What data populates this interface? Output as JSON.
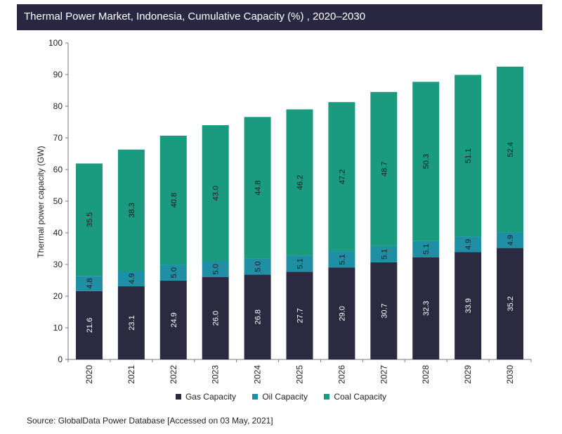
{
  "title": "Thermal Power Market, Indonesia, Cumulative Capacity (%) , 2020–2030",
  "source": "Source: GlobalData Power Database [Accessed on 03 May, 2021]",
  "colors": {
    "title_bg": "#2a2742",
    "gas": "#2c2a40",
    "oil": "#1f8fa6",
    "coal": "#1a9a7f"
  },
  "chart_data": {
    "type": "bar",
    "stacked": true,
    "categories": [
      "2020",
      "2021",
      "2022",
      "2023",
      "2024",
      "2025",
      "2026",
      "2027",
      "2028",
      "2029",
      "2030"
    ],
    "series": [
      {
        "name": "Gas Capacity",
        "values": [
          21.6,
          23.1,
          24.9,
          26.0,
          26.8,
          27.7,
          29.0,
          30.7,
          32.3,
          33.9,
          35.2
        ],
        "labels": [
          "21.6",
          "23.1",
          "24.9",
          "26.0",
          "26.8",
          "27.7",
          "29.0",
          "30.7",
          "32.3",
          "33.9",
          "35.2"
        ]
      },
      {
        "name": "Oil Capacity",
        "values": [
          4.8,
          4.9,
          5.0,
          5.0,
          5.0,
          5.1,
          5.1,
          5.1,
          5.1,
          4.9,
          4.9
        ],
        "labels": [
          "4.8",
          "4.9",
          "5.0",
          "5.0",
          "5.0",
          "5.1",
          "5.1",
          "5.1",
          "5.1",
          "4.9",
          "4.9"
        ]
      },
      {
        "name": "Coal Capacity",
        "values": [
          35.5,
          38.3,
          40.8,
          43.0,
          44.8,
          46.2,
          47.2,
          48.7,
          50.3,
          51.1,
          52.4
        ],
        "labels": [
          "35.5",
          "38.3",
          "40.8",
          "43.0",
          "44.8",
          "46.2",
          "47.2",
          "48.7",
          "50.3",
          "51.1",
          "52.4"
        ]
      }
    ],
    "ylabel": "Thermal power capacity (GW)",
    "ylim": [
      0,
      100
    ],
    "yticks": [
      "0",
      "10",
      "20",
      "30",
      "40",
      "50",
      "60",
      "70",
      "80",
      "90",
      "100"
    ],
    "grid": false,
    "legend_position": "bottom"
  }
}
